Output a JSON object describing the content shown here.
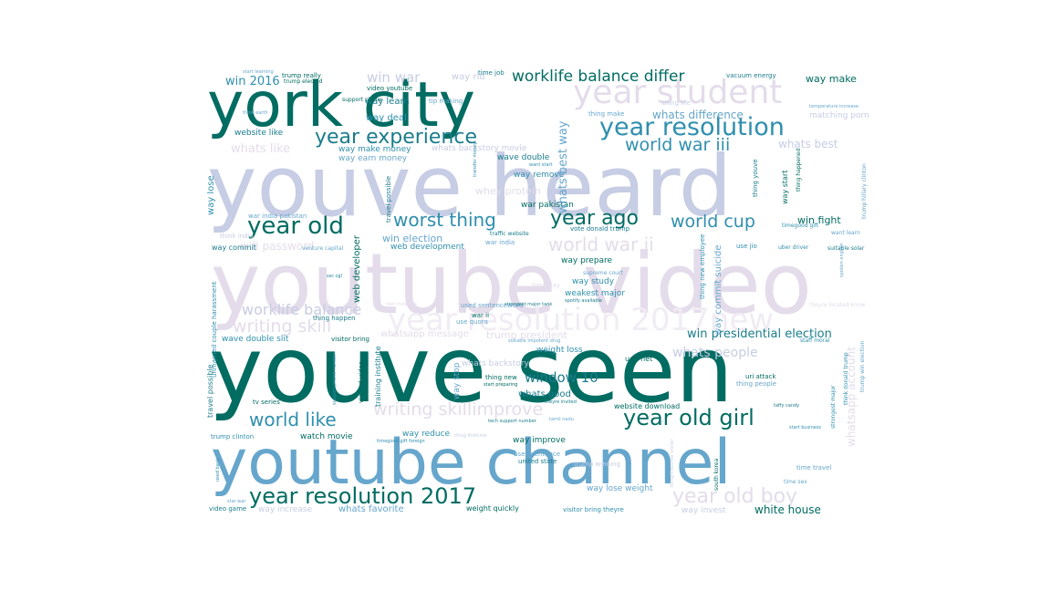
{
  "words": [
    {
      "text": "youve heard",
      "color": "#c6cde4"
    },
    {
      "text": "youtube video",
      "color": "#e4dcea"
    },
    {
      "text": "youve seen",
      "color": "#016c62"
    },
    {
      "text": "youtube channel",
      "color": "#66a6cc"
    },
    {
      "text": "york city",
      "color": "#016c62"
    },
    {
      "text": "year student",
      "color": "#e4dcea"
    },
    {
      "text": "year resolution",
      "color": "#2f8fae"
    },
    {
      "text": "year experience",
      "color": "#1a7c8c"
    },
    {
      "text": "worklife balance differ",
      "color": "#016c62"
    },
    {
      "text": "world war iii",
      "color": "#2f8fae"
    },
    {
      "text": "year old",
      "color": "#016c62"
    },
    {
      "text": "worst thing",
      "color": "#2f8fae"
    },
    {
      "text": "year ago",
      "color": "#016c62"
    },
    {
      "text": "world cup",
      "color": "#2f8fae"
    },
    {
      "text": "world war ii",
      "color": "#e4dcea"
    },
    {
      "text": "year resolution 2017new",
      "color": "#f1ecf4"
    },
    {
      "text": "worklife balance",
      "color": "#c6cde4"
    },
    {
      "text": "writing skill",
      "color": "#e4dcea"
    },
    {
      "text": "year old girl",
      "color": "#016c62"
    },
    {
      "text": "writing skillimprove",
      "color": "#e4dcea"
    },
    {
      "text": "world like",
      "color": "#2f8fae"
    },
    {
      "text": "year resolution 2017",
      "color": "#016c62"
    },
    {
      "text": "year old boy",
      "color": "#e4dcea"
    },
    {
      "text": "window 10",
      "color": "#1a7c8c"
    },
    {
      "text": "win presidential election",
      "color": "#1a7c8c"
    },
    {
      "text": "win war",
      "color": "#c6cde4"
    },
    {
      "text": "win 2016",
      "color": "#2f8fae"
    },
    {
      "text": "whats difference",
      "color": "#66a6cc"
    },
    {
      "text": "whats best",
      "color": "#c6cde4"
    },
    {
      "text": "whats like",
      "color": "#e4dcea"
    },
    {
      "text": "way make",
      "color": "#016c62"
    },
    {
      "text": "way learn",
      "color": "#1a7c8c"
    },
    {
      "text": "way rid",
      "color": "#c6cde4"
    },
    {
      "text": "time job",
      "color": "#1a7c8c"
    },
    {
      "text": "video youtube",
      "color": "#016c62"
    },
    {
      "text": "trump really",
      "color": "#016c62"
    },
    {
      "text": "trump elected",
      "color": "#016c62"
    },
    {
      "text": "start learning",
      "color": "#66a6cc"
    },
    {
      "text": "vacuum energy",
      "color": "#1a7c8c"
    },
    {
      "text": "way deal",
      "color": "#2f8fae"
    },
    {
      "text": "tip making",
      "color": "#66a6cc"
    },
    {
      "text": "thing make",
      "color": "#66a6cc"
    },
    {
      "text": "thing life",
      "color": "#c6cde4"
    },
    {
      "text": "matching porn",
      "color": "#c6cde4"
    },
    {
      "text": "website like",
      "color": "#1a7c8c"
    },
    {
      "text": "way make money",
      "color": "#2f8fae"
    },
    {
      "text": "whats backstory movie",
      "color": "#c6cde4"
    },
    {
      "text": "way earn money",
      "color": "#66a6cc"
    },
    {
      "text": "wave double",
      "color": "#1a7c8c"
    },
    {
      "text": "way remove",
      "color": "#2f8fae"
    },
    {
      "text": "whey protein",
      "color": "#e4dcea"
    },
    {
      "text": "war pakistan",
      "color": "#016c62"
    },
    {
      "text": "whats best way",
      "color": "#66a6cc"
    },
    {
      "text": "wifi password",
      "color": "#e4dcea"
    },
    {
      "text": "war india pakistan",
      "color": "#66a6cc"
    },
    {
      "text": "think india",
      "color": "#c6cde4"
    },
    {
      "text": "way commit",
      "color": "#1a7c8c"
    },
    {
      "text": "venture capital",
      "color": "#66a6cc"
    },
    {
      "text": "win election",
      "color": "#66a6cc"
    },
    {
      "text": "web development",
      "color": "#2f8fae"
    },
    {
      "text": "traffic website",
      "color": "#1a7c8c"
    },
    {
      "text": "war india",
      "color": "#66a6cc"
    },
    {
      "text": "vote donald trump",
      "color": "#1a7c8c"
    },
    {
      "text": "win fight",
      "color": "#016c62"
    },
    {
      "text": "timegood gift",
      "color": "#2f8fae"
    },
    {
      "text": "want learn",
      "color": "#66a6cc"
    },
    {
      "text": "way prepare",
      "color": "#016c62"
    },
    {
      "text": "supreme court",
      "color": "#66a6cc"
    },
    {
      "text": "way study",
      "color": "#2f8fae"
    },
    {
      "text": "weakest major",
      "color": "#2f8fae"
    },
    {
      "text": "time day",
      "color": "#e4dcea"
    },
    {
      "text": "web design",
      "color": "#c6cde4"
    },
    {
      "text": "use jio",
      "color": "#2f8fae"
    },
    {
      "text": "uber driver",
      "color": "#2f8fae"
    },
    {
      "text": "suitable solar",
      "color": "#1a7c8c"
    },
    {
      "text": "ssc cgl",
      "color": "#1a7c8c"
    },
    {
      "text": "text message",
      "color": "#e4dcea"
    },
    {
      "text": "used sentenceword",
      "color": "#66a6cc"
    },
    {
      "text": "strongest major tank",
      "color": "#1a7c8c"
    },
    {
      "text": "spotify available",
      "color": "#1a7c8c"
    },
    {
      "text": "theyre located know",
      "color": "#e4dcea"
    },
    {
      "text": "thing happen",
      "color": "#1a7c8c"
    },
    {
      "text": "war ii",
      "color": "#016c62"
    },
    {
      "text": "use quora",
      "color": "#66a6cc"
    },
    {
      "text": "whatsapp message",
      "color": "#e4dcea"
    },
    {
      "text": "trump president",
      "color": "#e4dcea"
    },
    {
      "text": "whats people",
      "color": "#c6cde4"
    },
    {
      "text": "wave double slit",
      "color": "#2f8fae"
    },
    {
      "text": "visitor bring",
      "color": "#016c62"
    },
    {
      "text": "suitable impotent drug",
      "color": "#66a6cc"
    },
    {
      "text": "staff moral",
      "color": "#2f8fae"
    },
    {
      "text": "weight loss",
      "color": "#2f8fae"
    },
    {
      "text": "whats backstory",
      "color": "#c6cde4"
    },
    {
      "text": "ugc net",
      "color": "#016c62"
    },
    {
      "text": "thing new",
      "color": "#016c62"
    },
    {
      "text": "start preparing",
      "color": "#016c62"
    },
    {
      "text": "uri attack",
      "color": "#016c62"
    },
    {
      "text": "thing people",
      "color": "#66a6cc"
    },
    {
      "text": "whats good",
      "color": "#1a7c8c"
    },
    {
      "text": "theyre invited",
      "color": "#1a7c8c"
    },
    {
      "text": "tv series",
      "color": "#016c62"
    },
    {
      "text": "website download",
      "color": "#016c62"
    },
    {
      "text": "tech support number",
      "color": "#1a7c8c"
    },
    {
      "text": "taffy candy",
      "color": "#1a7c8c"
    },
    {
      "text": "tamil nadu",
      "color": "#66a6cc"
    },
    {
      "text": "watch movie",
      "color": "#016c62"
    },
    {
      "text": "way reduce",
      "color": "#2f8fae"
    },
    {
      "text": "thing firsttime",
      "color": "#c6cde4"
    },
    {
      "text": "way improve",
      "color": "#016c62"
    },
    {
      "text": "start business",
      "color": "#2f8fae"
    },
    {
      "text": "trump clinton",
      "color": "#2f8fae"
    },
    {
      "text": "used sentence",
      "color": "#66a6cc"
    },
    {
      "text": "united state",
      "color": "#1a7c8c"
    },
    {
      "text": "trump winning",
      "color": "#c6cde4"
    },
    {
      "text": "time travel",
      "color": "#66a6cc"
    },
    {
      "text": "way lose weight",
      "color": "#66a6cc"
    },
    {
      "text": "video game",
      "color": "#1a7c8c"
    },
    {
      "text": "way increase",
      "color": "#c6cde4"
    },
    {
      "text": "whats favorite",
      "color": "#66a6cc"
    },
    {
      "text": "weight quickly",
      "color": "#016c62"
    },
    {
      "text": "visitor bring theyre",
      "color": "#2f8fae"
    },
    {
      "text": "way invest",
      "color": "#c6cde4"
    },
    {
      "text": "white house",
      "color": "#016c62"
    },
    {
      "text": "star war",
      "color": "#66a6cc"
    },
    {
      "text": "way lose",
      "color": "#2f8fae"
    },
    {
      "text": "travel possible",
      "color": "#1a7c8c"
    },
    {
      "text": "web developer",
      "color": "#016c62"
    },
    {
      "text": "unmarried couple harassment",
      "color": "#2f8fae"
    },
    {
      "text": "travel possible",
      "color": "#1a7c8c"
    },
    {
      "text": "training institute",
      "color": "#1a7c8c"
    },
    {
      "text": "viewed video",
      "color": "#016c62"
    },
    {
      "text": "support phone number",
      "color": "#2f8fae"
    },
    {
      "text": "way stop",
      "color": "#66a6cc"
    },
    {
      "text": "way commit suicide",
      "color": "#66a6cc"
    },
    {
      "text": "thing new employee",
      "color": "#2f8fae"
    },
    {
      "text": "whatsapp account",
      "color": "#e4dcea"
    },
    {
      "text": "think donald trump",
      "color": "#2f8fae"
    },
    {
      "text": "trump win election",
      "color": "#66a6cc"
    },
    {
      "text": "thing youve",
      "color": "#1a7c8c"
    },
    {
      "text": "way start",
      "color": "#016c62"
    },
    {
      "text": "thing happened",
      "color": "#016c62"
    },
    {
      "text": "time sex",
      "color": "#1a7c8c"
    },
    {
      "text": "trump hillary clinton",
      "color": "#66a6cc"
    },
    {
      "text": "want start",
      "color": "#016c62"
    },
    {
      "text": "timegood gift foreign",
      "color": "#2f8fae"
    },
    {
      "text": "temperature increase",
      "color": "#66a6cc"
    },
    {
      "text": "think earth",
      "color": "#c6cde4"
    },
    {
      "text": "support phone",
      "color": "#2f8fae"
    },
    {
      "text": "south korea",
      "color": "#2f8fae"
    },
    {
      "text": "strongest major",
      "color": "#66a6cc"
    },
    {
      "text": "spoken english",
      "color": "#66a6cc"
    },
    {
      "text": "thing firsttime visitor",
      "color": "#66a6cc"
    },
    {
      "text": "transfer money",
      "color": "#016c62"
    },
    {
      "text": "used bank",
      "color": "#e4dcea"
    }
  ]
}
